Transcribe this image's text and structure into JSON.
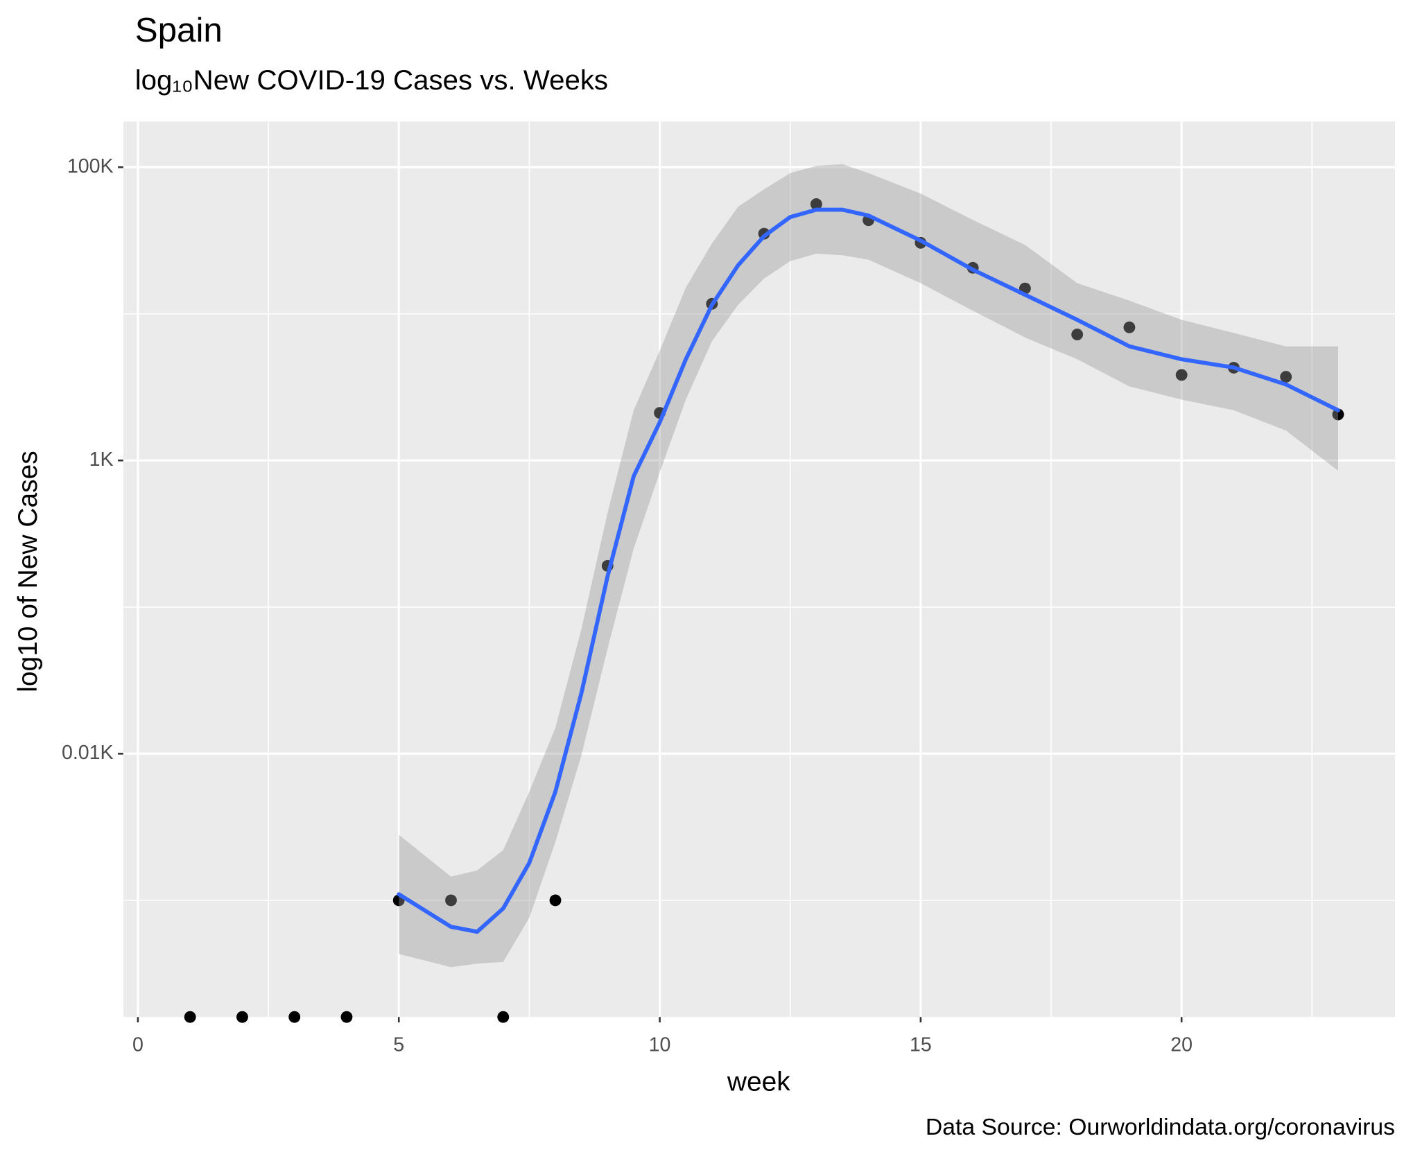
{
  "chart_data": {
    "type": "scatter",
    "title": "Spain",
    "subtitle": "log₁₀New COVID-19 Cases vs. Weeks",
    "caption": "Data Source: Ourworldindata.org/coronavirus",
    "x_label": "week",
    "y_label": "log10 of New Cases",
    "log_y": true,
    "grid": true,
    "xlim": [
      -0.28,
      24.09
    ],
    "xticks": [
      0,
      5,
      10,
      15,
      20
    ],
    "ylim": [
      0.16,
      205000
    ],
    "yticks": [
      {
        "value": 10,
        "label": "0.01K"
      },
      {
        "value": 1000,
        "label": "1K"
      },
      {
        "value": 100000,
        "label": "100K"
      }
    ],
    "x": [
      1,
      2,
      3,
      4,
      5,
      6,
      7,
      8,
      9,
      10,
      11,
      12,
      13,
      14,
      15,
      16,
      17,
      18,
      19,
      20,
      21,
      22,
      23
    ],
    "values": [
      0,
      0,
      0,
      0,
      1,
      1,
      0,
      1,
      191,
      2110,
      11700,
      35200,
      56000,
      43500,
      30500,
      20600,
      14900,
      7230,
      8090,
      3830,
      4290,
      3720,
      2060
    ],
    "color": "#000000",
    "smooth": {
      "color": "#3366FF",
      "fill": "#999999",
      "x": [
        5,
        6,
        6.5,
        7,
        7.5,
        8,
        8.5,
        9,
        9.5,
        10,
        10.5,
        11,
        11.5,
        12,
        12.5,
        13,
        13.5,
        14,
        15,
        16,
        17,
        18,
        19,
        20,
        21,
        22,
        23
      ],
      "values": [
        1.1,
        0.66,
        0.61,
        0.88,
        1.8,
        5.5,
        26,
        162,
        780,
        1820,
        4900,
        11500,
        21400,
        33900,
        45700,
        51300,
        51300,
        46800,
        31600,
        20000,
        13500,
        9100,
        6000,
        4900,
        4300,
        3300,
        2200
      ],
      "lower": [
        0.43,
        0.35,
        0.37,
        0.38,
        0.76,
        2.5,
        9.8,
        52,
        250,
        830,
        2600,
        6500,
        11500,
        17400,
        22900,
        25700,
        25100,
        23400,
        16200,
        10500,
        6900,
        4900,
        3200,
        2600,
        2200,
        1600,
        850
      ],
      "upper": [
        2.8,
        1.45,
        1.6,
        2.2,
        5.5,
        15,
        71,
        440,
        2200,
        5600,
        15100,
        30200,
        53700,
        70800,
        91200,
        102000,
        105000,
        91200,
        66100,
        43700,
        29500,
        16200,
        12300,
        9100,
        7400,
        6000,
        6000
      ]
    }
  }
}
